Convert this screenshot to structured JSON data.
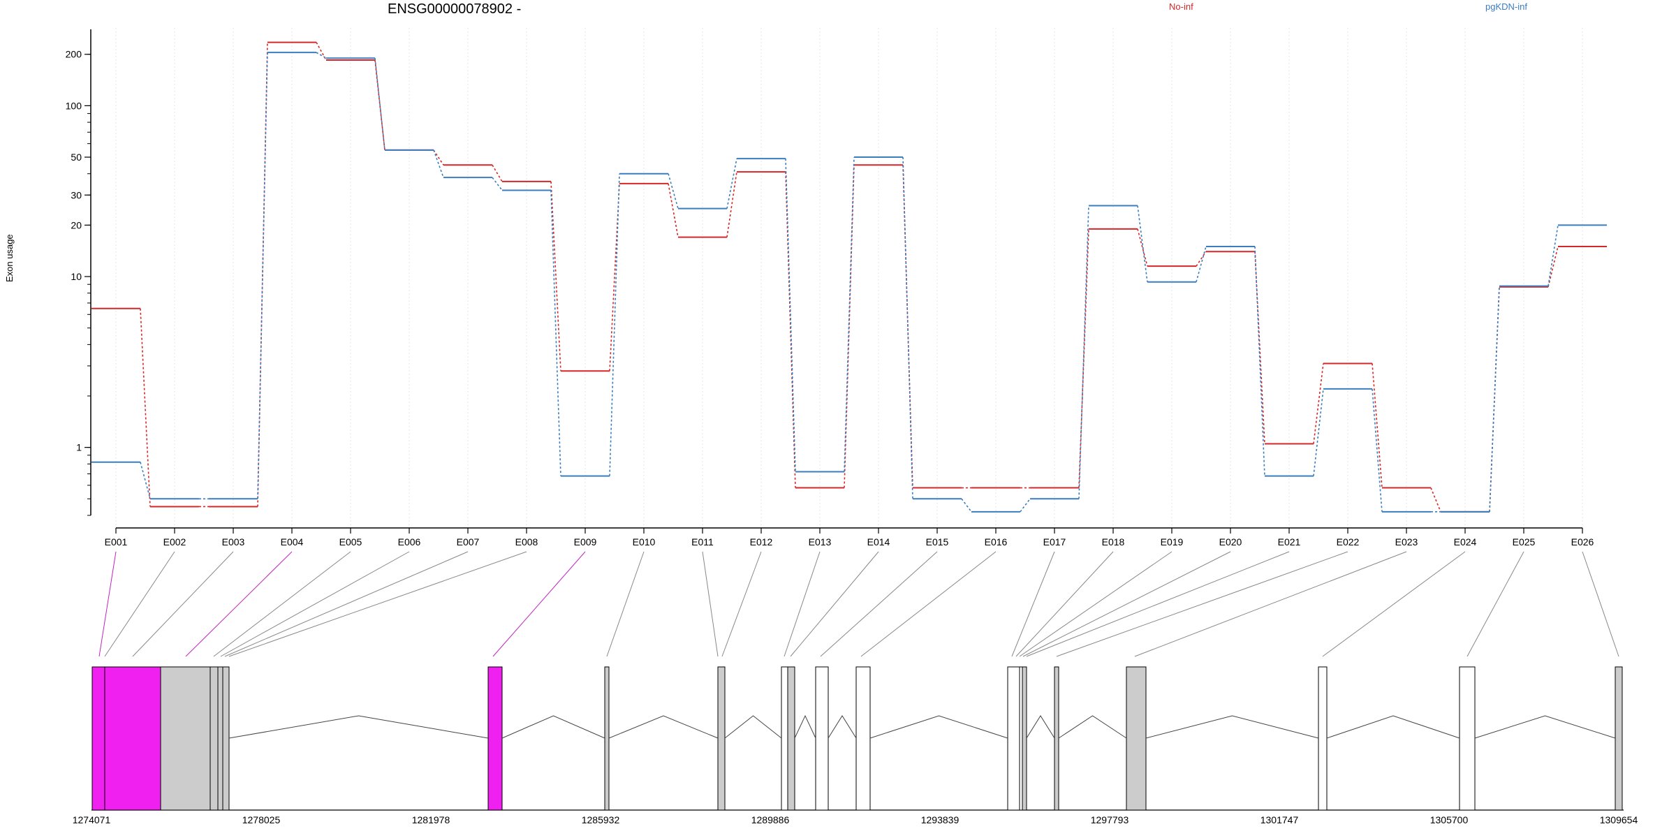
{
  "chart_data": {
    "type": "line",
    "title": "ENSG00000078902 -",
    "ylabel": "Exon usage",
    "xlabel": "",
    "yscale": "log",
    "ylim": [
      0.4,
      280
    ],
    "yticks": [
      1,
      10,
      20,
      30,
      50,
      100,
      200
    ],
    "grid": "vertical dotted",
    "legend_position": "top",
    "categories": [
      "E001",
      "E002",
      "E003",
      "E004",
      "E005",
      "E006",
      "E007",
      "E008",
      "E009",
      "E010",
      "E011",
      "E012",
      "E013",
      "E014",
      "E015",
      "E016",
      "E017",
      "E018",
      "E019",
      "E020",
      "E021",
      "E022",
      "E023",
      "E024",
      "E025",
      "E026"
    ],
    "series": [
      {
        "name": "No-inf",
        "color": "#d62728",
        "values": [
          6.5,
          0.45,
          0.45,
          235,
          185,
          55,
          45,
          36,
          2.8,
          35,
          17,
          41,
          0.58,
          45,
          0.58,
          0.58,
          0.58,
          19,
          11.5,
          14,
          1.05,
          3.1,
          0.58,
          0.42,
          8.7,
          15
        ]
      },
      {
        "name": "pgKDN-inf",
        "color": "#3a7ebf",
        "values": [
          0.82,
          0.5,
          0.5,
          205,
          190,
          55,
          38,
          32,
          0.68,
          40,
          25,
          49,
          0.72,
          50,
          0.5,
          0.42,
          0.5,
          26,
          9.3,
          15,
          0.68,
          2.2,
          0.42,
          0.42,
          8.8,
          20
        ]
      }
    ],
    "gene_track": {
      "coordinate_labels": [
        "1274071",
        "1278025",
        "1281978",
        "1285932",
        "1289886",
        "1293839",
        "1297793",
        "1301747",
        "1305700",
        "1309654"
      ],
      "highlight_color": "#f020f0",
      "exon_fill": "#cccccc"
    }
  }
}
